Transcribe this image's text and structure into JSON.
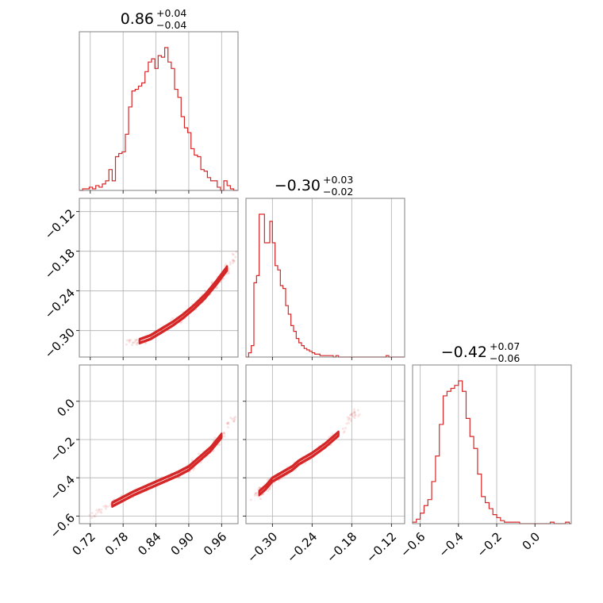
{
  "chart_data": {
    "type": "corner",
    "color": "#d62728",
    "parameters": [
      {
        "median": "0.86",
        "plus": "+0.04",
        "minus": "−0.04",
        "range": [
          0.7,
          0.99
        ],
        "ticks": [
          0.72,
          0.78,
          0.84,
          0.9,
          0.96
        ],
        "tick_labels": [
          "0.72",
          "0.78",
          "0.84",
          "0.90",
          "0.96"
        ],
        "hist_bins": [
          0.7,
          0.706,
          0.712,
          0.718,
          0.724,
          0.73,
          0.736,
          0.742,
          0.748,
          0.754,
          0.76,
          0.766,
          0.772,
          0.778,
          0.784,
          0.79,
          0.796,
          0.802,
          0.808,
          0.814,
          0.82,
          0.826,
          0.832,
          0.838,
          0.844,
          0.85,
          0.856,
          0.862,
          0.868,
          0.874,
          0.88,
          0.886,
          0.892,
          0.898,
          0.904,
          0.91,
          0.916,
          0.922,
          0.928,
          0.934,
          0.94,
          0.946,
          0.952,
          0.958,
          0.964,
          0.97,
          0.976,
          0.982,
          0.988,
          0.99
        ],
        "hist_counts": [
          0,
          1,
          1,
          2,
          1,
          3,
          2,
          4,
          6,
          13,
          6,
          21,
          23,
          24,
          35,
          52,
          62,
          63,
          65,
          67,
          74,
          80,
          82,
          76,
          84,
          83,
          89,
          80,
          76,
          63,
          58,
          46,
          39,
          36,
          26,
          22,
          21,
          13,
          12,
          8,
          6,
          6,
          2,
          0,
          6,
          3,
          1,
          0,
          0
        ]
      },
      {
        "median": "−0.30",
        "plus": "+0.03",
        "minus": "−0.02",
        "range": [
          -0.34,
          -0.1
        ],
        "ticks": [
          -0.3,
          -0.24,
          -0.18,
          -0.12
        ],
        "tick_labels": [
          "−0.30",
          "−0.24",
          "−0.18",
          "−0.12"
        ],
        "hist_bins": [
          -0.34,
          -0.336,
          -0.332,
          -0.328,
          -0.324,
          -0.32,
          -0.316,
          -0.312,
          -0.308,
          -0.304,
          -0.3,
          -0.296,
          -0.292,
          -0.288,
          -0.284,
          -0.28,
          -0.276,
          -0.272,
          -0.268,
          -0.264,
          -0.26,
          -0.256,
          -0.252,
          -0.248,
          -0.244,
          -0.24,
          -0.236,
          -0.232,
          -0.228,
          -0.224,
          -0.22,
          -0.216,
          -0.212,
          -0.208,
          -0.204,
          -0.2,
          -0.196,
          -0.192,
          -0.188,
          -0.184,
          -0.18,
          -0.176,
          -0.172,
          -0.168,
          -0.164,
          -0.16,
          -0.156,
          -0.152,
          -0.148,
          -0.144,
          -0.14,
          -0.136,
          -0.132,
          -0.128,
          -0.124,
          -0.12,
          -0.116,
          -0.112,
          -0.108,
          -0.104,
          -0.1
        ],
        "hist_counts": [
          0,
          3,
          8,
          52,
          57,
          100,
          100,
          80,
          80,
          95,
          80,
          64,
          61,
          50,
          48,
          36,
          30,
          22,
          18,
          13,
          10,
          8,
          6,
          5,
          4,
          3,
          2,
          2,
          1,
          1,
          1,
          1,
          1,
          0,
          1,
          0,
          0,
          0,
          0,
          0,
          0,
          0,
          0,
          0,
          0,
          0,
          0,
          0,
          0,
          0,
          0,
          0,
          0,
          1,
          0,
          0,
          0,
          0,
          0,
          0
        ]
      },
      {
        "median": "−0.42",
        "plus": "+0.07",
        "minus": "−0.06",
        "range": [
          -0.64,
          0.19
        ],
        "ticks": [
          -0.6,
          -0.4,
          -0.2,
          0.0
        ],
        "tick_labels": [
          "−0.6",
          "−0.4",
          "−0.2",
          "0.0"
        ],
        "hist_bins": [
          -0.64,
          -0.62,
          -0.6,
          -0.58,
          -0.56,
          -0.54,
          -0.52,
          -0.5,
          -0.48,
          -0.46,
          -0.44,
          -0.42,
          -0.4,
          -0.38,
          -0.36,
          -0.34,
          -0.32,
          -0.3,
          -0.28,
          -0.26,
          -0.24,
          -0.22,
          -0.2,
          -0.18,
          -0.16,
          -0.14,
          -0.12,
          -0.1,
          -0.08,
          -0.06,
          -0.04,
          -0.02,
          0.0,
          0.02,
          0.04,
          0.06,
          0.08,
          0.1,
          0.12,
          0.14,
          0.16,
          0.18,
          0.19
        ],
        "hist_counts": [
          1,
          3,
          7,
          12,
          16,
          28,
          45,
          66,
          85,
          88,
          90,
          92,
          95,
          88,
          70,
          58,
          50,
          33,
          18,
          14,
          10,
          6,
          4,
          2,
          1,
          1,
          1,
          1,
          0,
          0,
          0,
          0,
          0,
          0,
          0,
          0,
          1,
          0,
          0,
          0,
          1,
          0
        ]
      }
    ],
    "pairs": [
      {
        "x_param": 0,
        "y_param": 1,
        "y_ticks": [
          -0.3,
          -0.24,
          -0.18,
          -0.12
        ],
        "y_tick_labels": [
          "−0.30",
          "−0.24",
          "−0.18",
          "−0.12"
        ],
        "curve_x": [
          0.79,
          0.81,
          0.83,
          0.85,
          0.87,
          0.89,
          0.91,
          0.93,
          0.95,
          0.97,
          0.99
        ],
        "curve_y": [
          -0.32,
          -0.316,
          -0.31,
          -0.3,
          -0.29,
          -0.278,
          -0.264,
          -0.248,
          -0.228,
          -0.206,
          -0.18
        ]
      },
      {
        "x_param": 0,
        "y_param": 2,
        "y_ticks": [
          -0.6,
          -0.4,
          -0.2,
          0.0
        ],
        "y_tick_labels": [
          "−0.6",
          "−0.4",
          "−0.2",
          "0.0"
        ],
        "curve_x": [
          0.72,
          0.76,
          0.8,
          0.84,
          0.88,
          0.9,
          0.92,
          0.94,
          0.96,
          0.99
        ],
        "curve_y": [
          -0.6,
          -0.54,
          -0.48,
          -0.43,
          -0.38,
          -0.35,
          -0.3,
          -0.25,
          -0.18,
          -0.05
        ]
      },
      {
        "x_param": 1,
        "y_param": 2,
        "y_ticks": [
          -0.6,
          -0.4,
          -0.2,
          0.0
        ],
        "y_tick_labels": [
          "−0.6",
          "−0.4",
          "−0.2",
          "0.0"
        ],
        "curve_x": [
          -0.33,
          -0.32,
          -0.31,
          -0.3,
          -0.29,
          -0.28,
          -0.27,
          -0.26,
          -0.24,
          -0.22,
          -0.2,
          -0.18,
          -0.17
        ],
        "curve_y": [
          -0.53,
          -0.48,
          -0.45,
          -0.41,
          -0.39,
          -0.37,
          -0.35,
          -0.32,
          -0.28,
          -0.23,
          -0.17,
          -0.08,
          -0.05
        ]
      }
    ]
  }
}
